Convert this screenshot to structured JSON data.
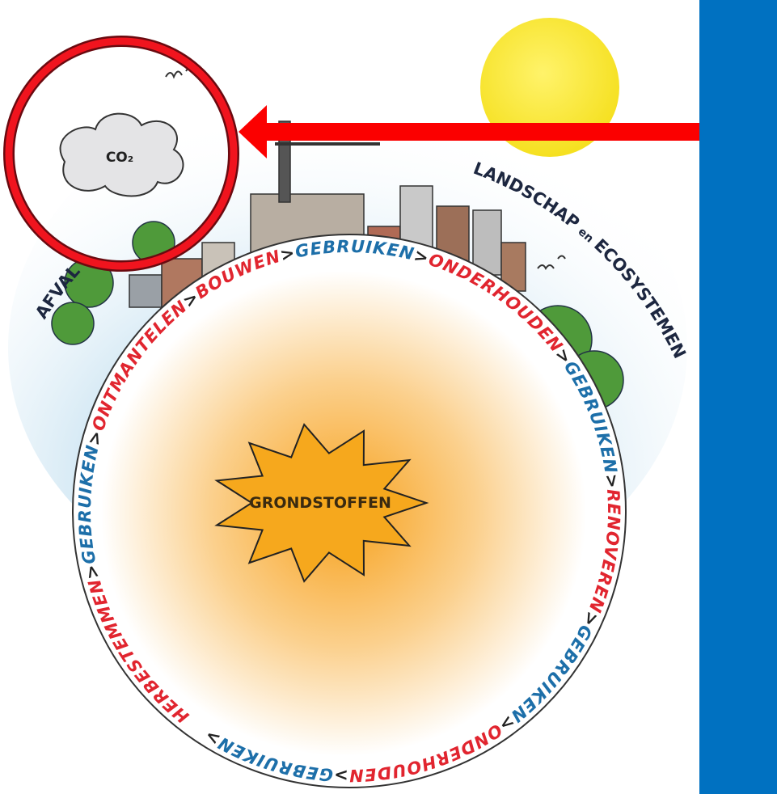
{
  "cloud_label": "CO₂",
  "center_label": "GRONDSTOFFEN",
  "left_label": "AFVAL",
  "right_label": {
    "main": "LANDSCHAP",
    "joiner": "en",
    "end": "ECOSYSTEMEN"
  },
  "separator": ">",
  "cycle": [
    {
      "word": "HERBESTEMMEN",
      "color": "#e1252f"
    },
    {
      "word": "GEBRUIKEN",
      "color": "#1d6fa9"
    },
    {
      "word": "ONTMANTELEN",
      "color": "#e1252f"
    },
    {
      "word": "BOUWEN",
      "color": "#e1252f"
    },
    {
      "word": "GEBRUIKEN",
      "color": "#1d6fa9"
    },
    {
      "word": "ONDERHOUDEN",
      "color": "#e1252f"
    },
    {
      "word": "GEBRUIKEN",
      "color": "#1d6fa9"
    },
    {
      "word": "RENOVEREN",
      "color": "#e1252f"
    },
    {
      "word": "GEBRUIKEN",
      "color": "#1d6fa9"
    },
    {
      "word": "ONDERHOUDEN",
      "color": "#e1252f"
    },
    {
      "word": "GEBRUIKEN",
      "color": "#1d6fa9"
    }
  ]
}
